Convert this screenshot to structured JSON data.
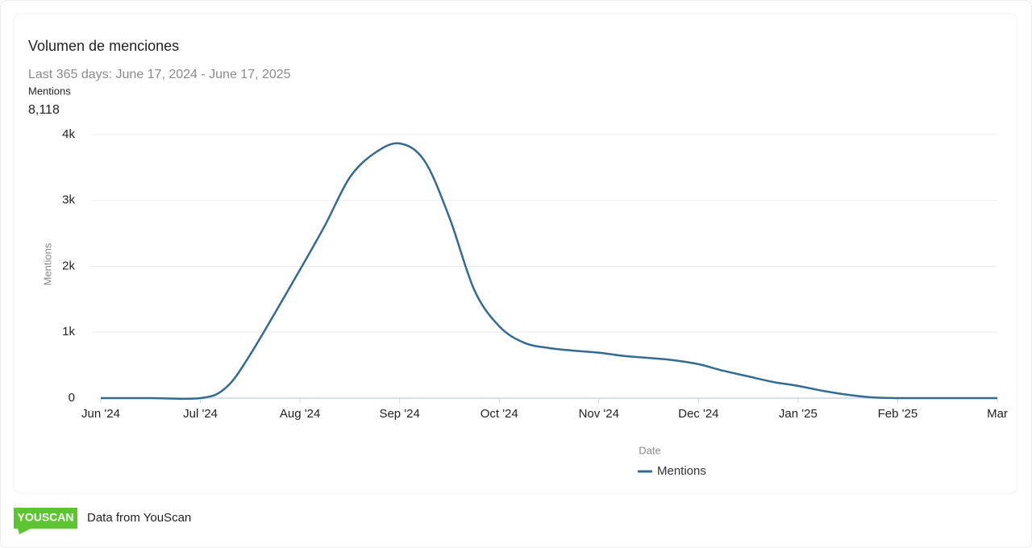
{
  "chart_data": {
    "type": "line",
    "title": "Volumen de menciones",
    "subtitle": "Last 365 days: June 17, 2024 - June 17, 2025",
    "summary_label": "Mentions",
    "summary_value": "8,118",
    "y_label": "Mentions",
    "x_label": "Date",
    "x": [
      0,
      0.5,
      1,
      1.25,
      1.5,
      2,
      2.25,
      2.5,
      2.75,
      3,
      3.25,
      3.5,
      3.75,
      4,
      4.25,
      4.5,
      4.75,
      5,
      5.25,
      5.5,
      5.75,
      6,
      6.25,
      6.5,
      6.75,
      7,
      7.25,
      7.5,
      7.75,
      8,
      8.5,
      9
    ],
    "series": [
      {
        "name": "Mentions",
        "color": "#336b91",
        "values": [
          0,
          0,
          0,
          150,
          660,
          1950,
          2620,
          3350,
          3720,
          3865,
          3600,
          2740,
          1640,
          1090,
          840,
          760,
          720,
          690,
          640,
          610,
          575,
          515,
          415,
          330,
          245,
          185,
          110,
          50,
          10,
          0,
          0,
          0
        ]
      }
    ],
    "xlim": [
      0,
      9
    ],
    "xticks": [
      {
        "value": 0,
        "label": "Jun '24"
      },
      {
        "value": 1,
        "label": "Jul '24"
      },
      {
        "value": 2,
        "label": "Aug '24"
      },
      {
        "value": 3,
        "label": "Sep '24"
      },
      {
        "value": 4,
        "label": "Oct '24"
      },
      {
        "value": 5,
        "label": "Nov '24"
      },
      {
        "value": 6,
        "label": "Dec '24"
      },
      {
        "value": 7,
        "label": "Jan '25"
      },
      {
        "value": 8,
        "label": "Feb '25"
      },
      {
        "value": 9,
        "label": "Mar"
      }
    ],
    "ylim": [
      0,
      4000
    ],
    "yticks": [
      0,
      {
        "value": 1000,
        "label": "1k"
      },
      {
        "value": 2000,
        "label": "2k"
      },
      {
        "value": 3000,
        "label": "3k"
      },
      {
        "value": 4000,
        "label": "4k"
      }
    ],
    "grid": true
  },
  "footer": {
    "logo": "YOUSCAN",
    "text": "Data from YouScan"
  }
}
